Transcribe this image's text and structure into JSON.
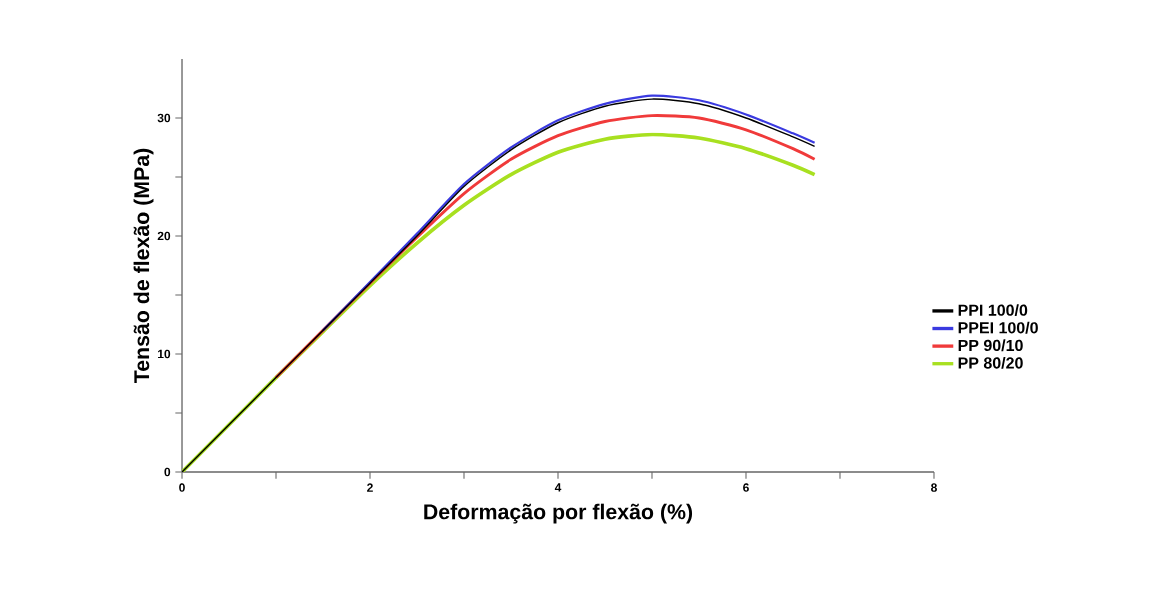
{
  "chart_data": {
    "type": "line",
    "xlabel": "Deformação por flexão (%)",
    "ylabel": "Tensão de flexão (MPa)",
    "xlim": [
      0,
      8
    ],
    "ylim": [
      0,
      35
    ],
    "xticks": [
      0,
      {
        "value": 1,
        "label": null
      },
      2,
      {
        "value": 3,
        "label": null
      },
      4,
      {
        "value": 5,
        "label": null
      },
      6,
      {
        "value": 7,
        "label": null
      },
      8
    ],
    "yticks": [
      0,
      {
        "value": 5,
        "label": null
      },
      10,
      {
        "value": 15,
        "label": null
      },
      20,
      {
        "value": 25,
        "label": null
      },
      30
    ],
    "legend": "right",
    "grid": false,
    "marker": "none",
    "line_style": "solid",
    "series": [
      {
        "name": "PPI 100/0",
        "color": "#000000",
        "x": [
          0,
          0.5,
          1,
          1.5,
          2,
          2.5,
          3,
          3.5,
          4,
          4.5,
          5,
          5.5,
          6,
          6.5,
          6.73
        ],
        "values": [
          0,
          4,
          8,
          12,
          16,
          20,
          24.2,
          27.3,
          29.6,
          31.0,
          31.6,
          31.2,
          30.0,
          28.4,
          27.6
        ]
      },
      {
        "name": "PPEI 100/0",
        "color": "#3a3ae0",
        "x": [
          1.5,
          2,
          2.5,
          3,
          3.5,
          4,
          4.5,
          5,
          5.5,
          6,
          6.5,
          6.73
        ],
        "values": [
          12,
          16.1,
          20.2,
          24.4,
          27.5,
          29.8,
          31.2,
          31.9,
          31.5,
          30.3,
          28.7,
          27.9
        ]
      },
      {
        "name": "PP 90/10",
        "color": "#f03a3a",
        "x": [
          1,
          1.5,
          2,
          2.5,
          3,
          3.5,
          4,
          4.5,
          5,
          5.5,
          6,
          6.5,
          6.73
        ],
        "values": [
          8,
          12,
          16,
          19.9,
          23.6,
          26.5,
          28.5,
          29.7,
          30.2,
          30.0,
          29.0,
          27.4,
          26.5
        ]
      },
      {
        "name": "PP 80/20",
        "color": "#a8e020",
        "x": [
          0,
          0.5,
          1,
          1.5,
          2,
          2.5,
          3,
          3.5,
          4,
          4.5,
          5,
          5.5,
          6,
          6.5,
          6.73
        ],
        "values": [
          0,
          4,
          8,
          11.9,
          15.8,
          19.4,
          22.6,
          25.2,
          27.1,
          28.2,
          28.6,
          28.3,
          27.4,
          26.0,
          25.2
        ]
      }
    ]
  }
}
